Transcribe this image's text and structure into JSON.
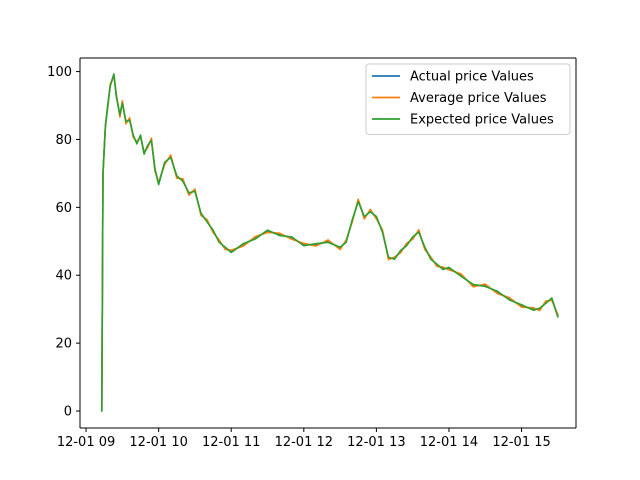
{
  "chart_data": {
    "type": "line",
    "x_unit": "datetime",
    "xlim": [
      "12-01 08:55",
      "12-01 15:45"
    ],
    "ylim": [
      -5,
      104
    ],
    "x_ticks": [
      "12-01 09:00",
      "12-01 10:00",
      "12-01 11:00",
      "12-01 12:00",
      "12-01 13:00",
      "12-01 14:00",
      "12-01 15:00"
    ],
    "x_tick_labels": [
      "12-01 09",
      "12-01 10",
      "12-01 11",
      "12-01 12",
      "12-01 13",
      "12-01 14",
      "12-01 15"
    ],
    "y_ticks": [
      0,
      20,
      40,
      60,
      80,
      100
    ],
    "y_tick_labels": [
      "0",
      "20",
      "40",
      "60",
      "80",
      "100"
    ],
    "grid": false,
    "legend_position": "top-right",
    "x": [
      "12-01 09:13",
      "12-01 09:14",
      "12-01 09:16",
      "12-01 09:18",
      "12-01 09:20",
      "12-01 09:23",
      "12-01 09:25",
      "12-01 09:28",
      "12-01 09:30",
      "12-01 09:33",
      "12-01 09:36",
      "12-01 09:39",
      "12-01 09:42",
      "12-01 09:45",
      "12-01 09:48",
      "12-01 09:51",
      "12-01 09:54",
      "12-01 09:57",
      "12-01 10:00",
      "12-01 10:05",
      "12-01 10:10",
      "12-01 10:15",
      "12-01 10:20",
      "12-01 10:25",
      "12-01 10:30",
      "12-01 10:35",
      "12-01 10:40",
      "12-01 10:45",
      "12-01 10:50",
      "12-01 10:55",
      "12-01 11:00",
      "12-01 11:10",
      "12-01 11:20",
      "12-01 11:30",
      "12-01 11:40",
      "12-01 11:50",
      "12-01 12:00",
      "12-01 12:10",
      "12-01 12:20",
      "12-01 12:30",
      "12-01 12:35",
      "12-01 12:40",
      "12-01 12:45",
      "12-01 12:50",
      "12-01 12:55",
      "12-01 13:00",
      "12-01 13:05",
      "12-01 13:10",
      "12-01 13:15",
      "12-01 13:20",
      "12-01 13:25",
      "12-01 13:30",
      "12-01 13:35",
      "12-01 13:40",
      "12-01 13:45",
      "12-01 13:50",
      "12-01 13:55",
      "12-01 14:00",
      "12-01 14:10",
      "12-01 14:20",
      "12-01 14:30",
      "12-01 14:40",
      "12-01 14:50",
      "12-01 15:00",
      "12-01 15:10",
      "12-01 15:15",
      "12-01 15:20",
      "12-01 15:25",
      "12-01 15:30"
    ],
    "series": [
      {
        "name": "Actual price Values",
        "color": "#1f77b4",
        "values": [
          0,
          70,
          84,
          90,
          96,
          99,
          93,
          87,
          91,
          85,
          86,
          81,
          79,
          81,
          76,
          78,
          80,
          71,
          67,
          73,
          75,
          69,
          68,
          64,
          65,
          58,
          56,
          53,
          50,
          48,
          47,
          49,
          51,
          53,
          52,
          51,
          49,
          49,
          50,
          48,
          50,
          56,
          62,
          57,
          59,
          57,
          53,
          45,
          45,
          47,
          49,
          51,
          53,
          48,
          45,
          43,
          42,
          42,
          40,
          37,
          37,
          35,
          33,
          31,
          30,
          30,
          32,
          33,
          28
        ]
      },
      {
        "name": "Average price Values",
        "color": "#ff7f0e",
        "values": [
          0,
          70,
          84,
          90,
          96,
          99,
          93,
          87,
          91,
          85,
          86,
          81,
          79,
          81,
          76,
          78,
          80,
          71,
          67,
          73,
          75,
          69,
          68,
          64,
          65,
          58,
          56,
          53,
          50,
          48,
          47,
          49,
          51,
          53,
          52,
          51,
          49,
          49,
          50,
          48,
          50,
          56,
          62,
          57,
          59,
          57,
          53,
          45,
          45,
          47,
          49,
          51,
          53,
          48,
          45,
          43,
          42,
          42,
          40,
          37,
          37,
          35,
          33,
          31,
          30,
          30,
          32,
          33,
          28
        ]
      },
      {
        "name": "Expected price Values",
        "color": "#2ca02c",
        "values": [
          0,
          70,
          84,
          90,
          96,
          99,
          93,
          87,
          91,
          85,
          86,
          81,
          79,
          81,
          76,
          78,
          80,
          71,
          67,
          73,
          75,
          69,
          68,
          64,
          65,
          58,
          56,
          53,
          50,
          48,
          47,
          49,
          51,
          53,
          52,
          51,
          49,
          49,
          50,
          48,
          50,
          56,
          62,
          57,
          59,
          57,
          53,
          45,
          45,
          47,
          49,
          51,
          53,
          48,
          45,
          43,
          42,
          42,
          40,
          37,
          37,
          35,
          33,
          31,
          30,
          30,
          32,
          33,
          28
        ]
      }
    ]
  }
}
